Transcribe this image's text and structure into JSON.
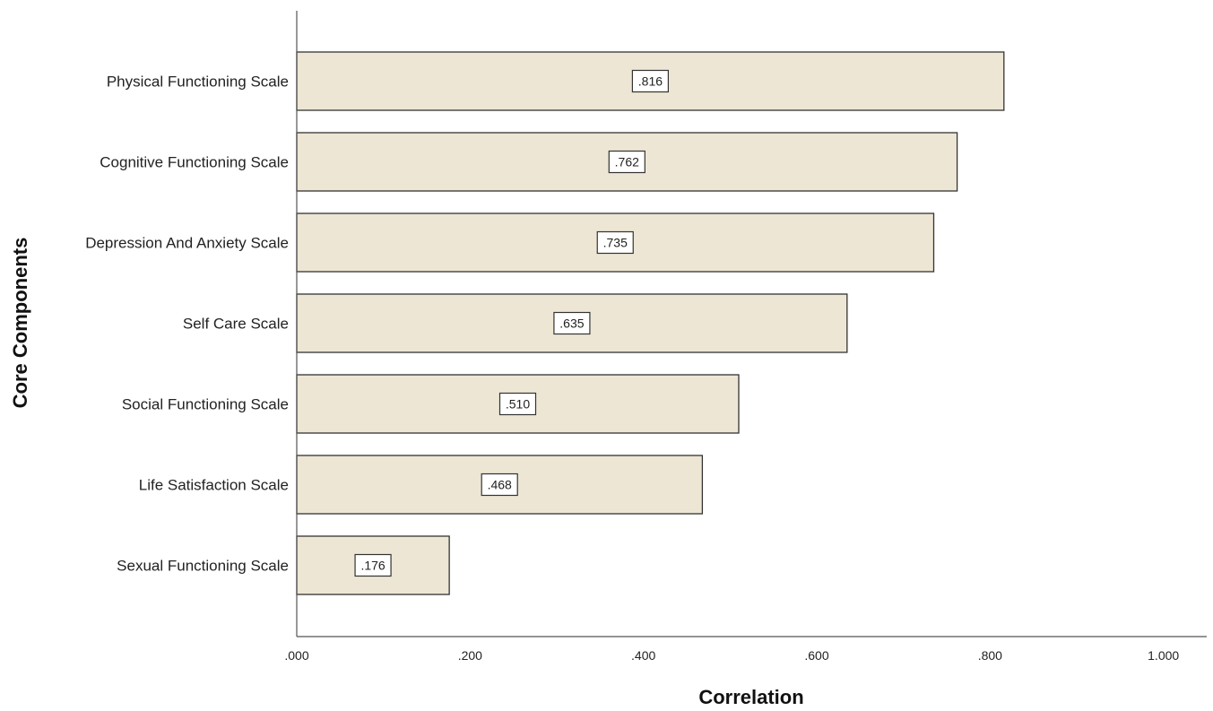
{
  "chart_data": {
    "type": "bar",
    "orientation": "horizontal",
    "title": "",
    "xlabel": "Correlation",
    "ylabel": "Core Components",
    "categories": [
      "Physical Functioning Scale",
      "Cognitive Functioning Scale",
      "Depression And Anxiety Scale",
      "Self Care Scale",
      "Social Functioning Scale",
      "Life Satisfaction Scale",
      "Sexual Functioning Scale"
    ],
    "values": [
      0.816,
      0.762,
      0.735,
      0.635,
      0.51,
      0.468,
      0.176
    ],
    "data_labels": [
      ".816",
      ".762",
      ".735",
      ".635",
      ".510",
      ".468",
      ".176"
    ],
    "xlim": [
      0,
      1.05
    ],
    "xticks": [
      0,
      0.2,
      0.4,
      0.6,
      0.8,
      1.0
    ],
    "xtick_labels": [
      ".000",
      ".200",
      ".400",
      ".600",
      ".800",
      "1.000"
    ],
    "grid": false,
    "legend": "none",
    "colors": {
      "bar_fill": "#ede6d4",
      "bar_stroke": "#333333",
      "axis": "#555555",
      "label_box_fill": "#ffffff",
      "label_box_stroke": "#333333"
    }
  }
}
